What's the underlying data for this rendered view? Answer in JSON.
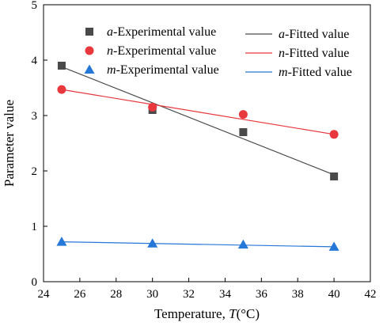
{
  "chart_data": {
    "type": "scatter",
    "xlabel": "Temperature, T(°C)",
    "ylabel": "Parameter value",
    "xlim": [
      24,
      42
    ],
    "ylim": [
      0,
      5
    ],
    "xticks": [
      "24",
      "26",
      "28",
      "30",
      "32",
      "34",
      "36",
      "38",
      "40",
      "42"
    ],
    "yticks": [
      "0",
      "1",
      "2",
      "3",
      "4",
      "5"
    ],
    "grid": false,
    "legend_position": "top",
    "series": [
      {
        "id": "a",
        "kind": "experimental",
        "name": "a-Experimental value",
        "marker": "square",
        "color": "#4a4a4a",
        "x": [
          25,
          30,
          35,
          40
        ],
        "y": [
          3.9,
          3.1,
          2.7,
          1.9
        ]
      },
      {
        "id": "n",
        "kind": "experimental",
        "name": "n-Experimental value",
        "marker": "circle",
        "color": "#e8373d",
        "x": [
          25,
          30,
          35,
          40
        ],
        "y": [
          3.47,
          3.15,
          3.02,
          2.66
        ]
      },
      {
        "id": "m",
        "kind": "experimental",
        "name": "m-Experimental value",
        "marker": "triangle",
        "color": "#2577d8",
        "x": [
          25,
          30,
          35,
          40
        ],
        "y": [
          0.72,
          0.69,
          0.67,
          0.63
        ]
      },
      {
        "id": "a",
        "kind": "fitted",
        "name": "a-Fitted value",
        "color": "#4a4a4a",
        "x": [
          25,
          40
        ],
        "y": [
          3.88,
          1.93
        ]
      },
      {
        "id": "n",
        "kind": "fitted",
        "name": "n-Fitted value",
        "color": "#e8373d",
        "x": [
          25,
          40
        ],
        "y": [
          3.47,
          2.66
        ]
      },
      {
        "id": "m",
        "kind": "fitted",
        "name": "m-Fitted value",
        "color": "#2577d8",
        "x": [
          25,
          40
        ],
        "y": [
          0.72,
          0.63
        ]
      }
    ],
    "legend": {
      "experimental": [
        {
          "var": "a",
          "suffix": "-Experimental value"
        },
        {
          "var": "n",
          "suffix": "-Experimental value"
        },
        {
          "var": "m",
          "suffix": "-Experimental value"
        }
      ],
      "fitted": [
        {
          "var": "a",
          "suffix": "-Fitted value"
        },
        {
          "var": "n",
          "suffix": "-Fitted value"
        },
        {
          "var": "m",
          "suffix": "-Fitted value"
        }
      ]
    }
  }
}
